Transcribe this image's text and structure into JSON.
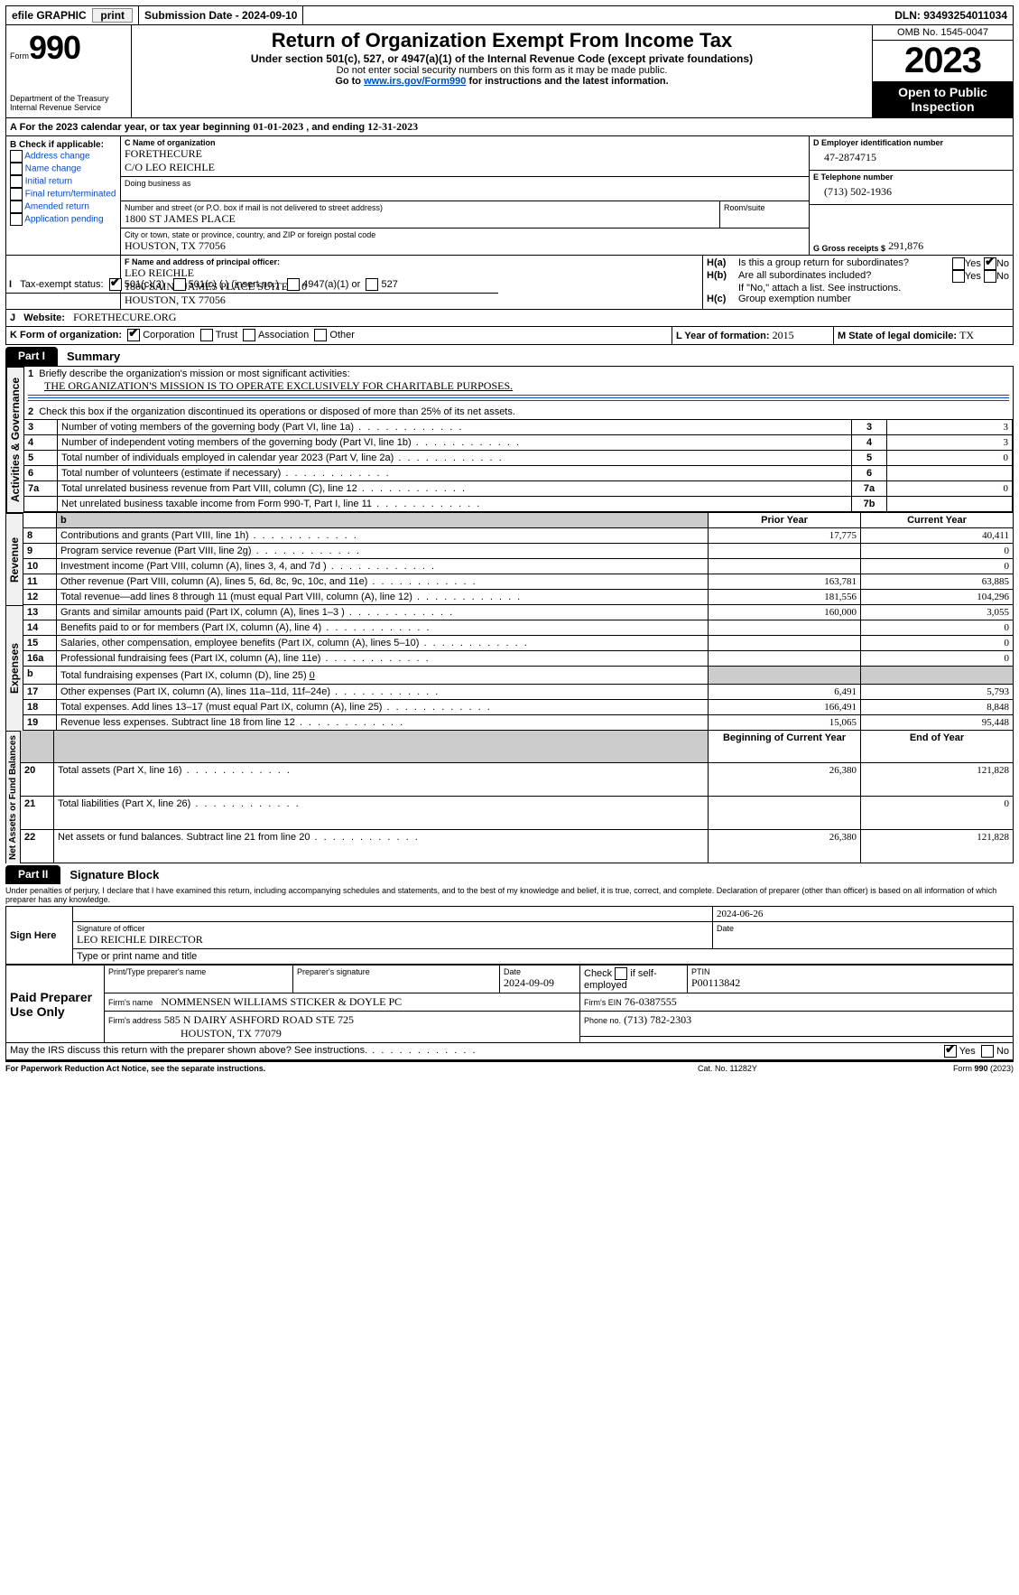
{
  "topbar": {
    "efile_label": "efile GRAPHIC",
    "print_btn": "print",
    "submission_label": "Submission Date - 2024-09-10",
    "dln_label": "DLN: 93493254011034"
  },
  "header": {
    "form_word": "Form",
    "form_no": "990",
    "dept": "Department of the Treasury\nInternal Revenue Service",
    "title": "Return of Organization Exempt From Income Tax",
    "subtitle": "Under section 501(c), 527, or 4947(a)(1) of the Internal Revenue Code (except private foundations)",
    "warn": "Do not enter social security numbers on this form as it may be made public.",
    "goto_prefix": "Go to ",
    "goto_link": "www.irs.gov/Form990",
    "goto_suffix": " for instructions and the latest information.",
    "omb": "OMB No. 1545-0047",
    "year": "2023",
    "open": "Open to Public Inspection"
  },
  "lineA": {
    "text_a": "For the 2023 calendar year, or tax year beginning ",
    "begin": "01-01-2023",
    "text_b": " , and ending ",
    "end": "12-31-2023"
  },
  "boxB": {
    "label": "B Check if applicable:",
    "addr": "Address change",
    "name": "Name change",
    "init": "Initial return",
    "final": "Final return/terminated",
    "amend": "Amended return",
    "app": "Application pending"
  },
  "boxC": {
    "name_lbl": "C Name of organization",
    "name1": "FORETHECURE",
    "name2": "C/O LEO REICHLE",
    "dba_lbl": "Doing business as",
    "street_lbl": "Number and street (or P.O. box if mail is not delivered to street address)",
    "room_lbl": "Room/suite",
    "street": "1800 ST JAMES PLACE",
    "city_lbl": "City or town, state or province, country, and ZIP or foreign postal code",
    "city": "HOUSTON, TX  77056"
  },
  "boxD": {
    "lbl": "D Employer identification number",
    "val": "47-2874715"
  },
  "boxE": {
    "lbl": "E Telephone number",
    "val": "(713) 502-1936"
  },
  "boxG": {
    "lbl": "G Gross receipts $",
    "val": "291,876"
  },
  "boxF": {
    "lbl": "F  Name and address of principal officer:",
    "l1": "LEO REICHLE",
    "l2": "1800 SAINT JAMES PLACE SUITE 210",
    "l3": "HOUSTON, TX  77056"
  },
  "boxH": {
    "a_lbl": "Is this a group return for subordinates?",
    "b_lbl": "Are all subordinates included?",
    "b_note": "If \"No,\" attach a list. See instructions.",
    "c_lbl": "Group exemption number",
    "yes": "Yes",
    "no": "No"
  },
  "boxI": {
    "lbl": "Tax-exempt status:",
    "o1": "501(c)(3)",
    "o2": "501(c) (  ) (insert no.)",
    "o3": "4947(a)(1) or",
    "o4": "527"
  },
  "boxJ": {
    "lbl": "Website:",
    "val": "FORETHECURE.ORG"
  },
  "boxK": {
    "lbl": "K Form of organization:",
    "corp": "Corporation",
    "trust": "Trust",
    "assoc": "Association",
    "other": "Other"
  },
  "boxL": {
    "lbl": "L Year of formation:",
    "val": "2015"
  },
  "boxM": {
    "lbl": "M State of legal domicile:",
    "val": "TX"
  },
  "part1": {
    "tab": "Part I",
    "title": "Summary",
    "q1": "Briefly describe the organization's mission or most significant activities:",
    "q1v": "THE ORGANIZATION'S MISSION IS TO OPERATE EXCLUSIVELY FOR CHARITABLE PURPOSES.",
    "q2": "Check this box       if the organization discontinued its operations or disposed of more than 25% of its net assets.",
    "side_ag": "Activities & Governance",
    "side_rev": "Revenue",
    "side_exp": "Expenses",
    "side_na": "Net Assets or Fund Balances",
    "prior": "Prior Year",
    "current": "Current Year",
    "bcy": "Beginning of Current Year",
    "eoy": "End of Year",
    "rows_gov": [
      {
        "n": "3",
        "t": "Number of voting members of the governing body (Part VI, line 1a)",
        "box": "3",
        "v": "3"
      },
      {
        "n": "4",
        "t": "Number of independent voting members of the governing body (Part VI, line 1b)",
        "box": "4",
        "v": "3"
      },
      {
        "n": "5",
        "t": "Total number of individuals employed in calendar year 2023 (Part V, line 2a)",
        "box": "5",
        "v": "0"
      },
      {
        "n": "6",
        "t": "Total number of volunteers (estimate if necessary)",
        "box": "6",
        "v": ""
      },
      {
        "n": "7a",
        "t": "Total unrelated business revenue from Part VIII, column (C), line 12",
        "box": "7a",
        "v": "0"
      },
      {
        "n": "",
        "t": "Net unrelated business taxable income from Form 990-T, Part I, line 11",
        "box": "7b",
        "v": ""
      }
    ],
    "rows_rev": [
      {
        "n": "8",
        "t": "Contributions and grants (Part VIII, line 1h)",
        "p": "17,775",
        "c": "40,411"
      },
      {
        "n": "9",
        "t": "Program service revenue (Part VIII, line 2g)",
        "p": "",
        "c": "0"
      },
      {
        "n": "10",
        "t": "Investment income (Part VIII, column (A), lines 3, 4, and 7d )",
        "p": "",
        "c": "0"
      },
      {
        "n": "11",
        "t": "Other revenue (Part VIII, column (A), lines 5, 6d, 8c, 9c, 10c, and 11e)",
        "p": "163,781",
        "c": "63,885"
      },
      {
        "n": "12",
        "t": "Total revenue—add lines 8 through 11 (must equal Part VIII, column (A), line 12)",
        "p": "181,556",
        "c": "104,296"
      }
    ],
    "rows_exp": [
      {
        "n": "13",
        "t": "Grants and similar amounts paid (Part IX, column (A), lines 1–3 )",
        "p": "160,000",
        "c": "3,055"
      },
      {
        "n": "14",
        "t": "Benefits paid to or for members (Part IX, column (A), line 4)",
        "p": "",
        "c": "0"
      },
      {
        "n": "15",
        "t": "Salaries, other compensation, employee benefits (Part IX, column (A), lines 5–10)",
        "p": "",
        "c": "0"
      },
      {
        "n": "16a",
        "t": "Professional fundraising fees (Part IX, column (A), line 11e)",
        "p": "",
        "c": "0"
      },
      {
        "n": "b",
        "t": "Total fundraising expenses (Part IX, column (D), line 25)",
        "fund": "0",
        "shade": true
      },
      {
        "n": "17",
        "t": "Other expenses (Part IX, column (A), lines 11a–11d, 11f–24e)",
        "p": "6,491",
        "c": "5,793"
      },
      {
        "n": "18",
        "t": "Total expenses. Add lines 13–17 (must equal Part IX, column (A), line 25)",
        "p": "166,491",
        "c": "8,848"
      },
      {
        "n": "19",
        "t": "Revenue less expenses. Subtract line 18 from line 12",
        "p": "15,065",
        "c": "95,448"
      }
    ],
    "rows_na": [
      {
        "n": "20",
        "t": "Total assets (Part X, line 16)",
        "p": "26,380",
        "c": "121,828"
      },
      {
        "n": "21",
        "t": "Total liabilities (Part X, line 26)",
        "p": "",
        "c": "0"
      },
      {
        "n": "22",
        "t": "Net assets or fund balances. Subtract line 21 from line 20",
        "p": "26,380",
        "c": "121,828"
      }
    ]
  },
  "part2": {
    "tab": "Part II",
    "title": "Signature Block",
    "decl": "Under penalties of perjury, I declare that I have examined this return, including accompanying schedules and statements, and to the best of my knowledge and belief, it is true, correct, and complete. Declaration of preparer (other than officer) is based on all information of which preparer has any knowledge.",
    "sign_here": "Sign Here",
    "sig_lbl": "Signature of officer",
    "date_lbl": "Date",
    "sig_date": "2024-06-26",
    "officer": "LEO REICHLE  DIRECTOR",
    "type_lbl": "Type or print name and title",
    "paid": "Paid Preparer Use Only",
    "prep_name_lbl": "Print/Type preparer's name",
    "prep_sig_lbl": "Preparer's signature",
    "prep_date_lbl": "Date",
    "prep_date": "2024-09-09",
    "self_lbl": "Check        if self-employed",
    "ptin_lbl": "PTIN",
    "ptin": "P00113842",
    "firm_name_lbl": "Firm's name",
    "firm_name": "NOMMENSEN WILLIAMS STICKER & DOYLE PC",
    "firm_ein_lbl": "Firm's EIN",
    "firm_ein": "76-0387555",
    "firm_addr_lbl": "Firm's address",
    "firm_addr1": "585 N DAIRY ASHFORD ROAD STE 725",
    "firm_addr2": "HOUSTON, TX  77079",
    "phone_lbl": "Phone no.",
    "phone": "(713) 782-2303",
    "discuss": "May the IRS discuss this return with the preparer shown above? See instructions.",
    "paperwork": "For Paperwork Reduction Act Notice, see the separate instructions.",
    "cat": "Cat. No. 11282Y",
    "form_foot": "Form 990 (2023)"
  },
  "style": {
    "link_color": "#004bc5",
    "shade_color": "#cccccc",
    "black": "#000000"
  }
}
